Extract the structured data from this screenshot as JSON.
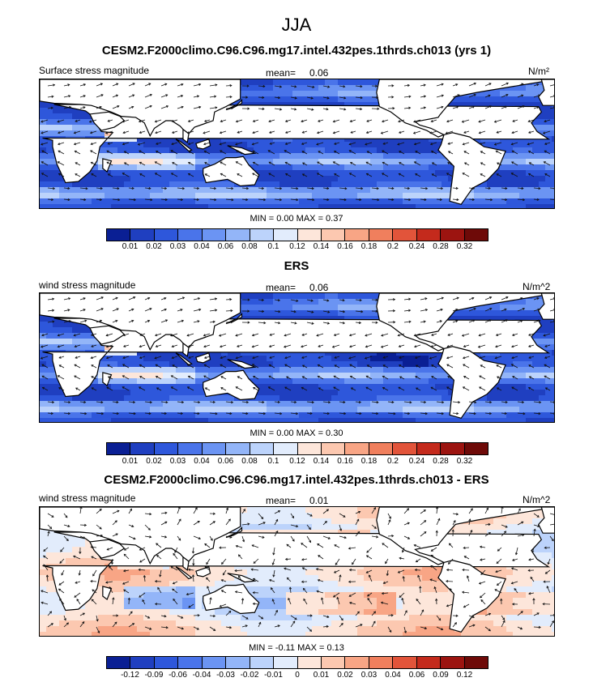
{
  "page": {
    "title": "JJA"
  },
  "panels": [
    {
      "title": "CESM2.F2000climo.C96.C96.mg17.intel.432pes.1thrds.ch013 (yrs 1)",
      "left_label": "Surface stress magnitude",
      "mean_label": "mean=",
      "mean_value": "0.06",
      "units": "N/m²",
      "minmax": "MIN =   0.00 MAX =   0.37",
      "colorbar_ticks": [
        "0.01",
        "0.02",
        "0.03",
        "0.04",
        "0.06",
        "0.08",
        "0.1",
        "0.12",
        "0.14",
        "0.16",
        "0.18",
        "0.2",
        "0.24",
        "0.28",
        "0.32"
      ],
      "kind": "model"
    },
    {
      "title": "ERS",
      "left_label": "wind stress magnitude",
      "mean_label": "mean=",
      "mean_value": "0.06",
      "units": "N/m^2",
      "minmax": "MIN =   0.00 MAX =   0.30",
      "colorbar_ticks": [
        "0.01",
        "0.02",
        "0.03",
        "0.04",
        "0.06",
        "0.08",
        "0.1",
        "0.12",
        "0.14",
        "0.16",
        "0.18",
        "0.2",
        "0.24",
        "0.28",
        "0.32"
      ],
      "kind": "obs"
    },
    {
      "title": "CESM2.F2000climo.C96.C96.mg17.intel.432pes.1thrds.ch013 - ERS",
      "left_label": "wind stress magnitude",
      "mean_label": "mean=",
      "mean_value": "0.01",
      "units": "N/m^2",
      "minmax": "MIN =  -0.11 MAX =   0.13",
      "colorbar_ticks": [
        "-0.12",
        "-0.09",
        "-0.06",
        "-0.04",
        "-0.03",
        "-0.02",
        "-0.01",
        "0",
        "0.01",
        "0.02",
        "0.03",
        "0.04",
        "0.06",
        "0.09",
        "0.12"
      ],
      "kind": "diff"
    }
  ],
  "colorbar_colors": [
    "#0a1f94",
    "#1f3fc0",
    "#2e57db",
    "#4a74ea",
    "#6b94f3",
    "#93b5f8",
    "#bcd3fb",
    "#e2ecfc",
    "#fde6da",
    "#fcc8b0",
    "#f8a585",
    "#f07f5d",
    "#e2543a",
    "#c42a1c",
    "#9c1410",
    "#6e0a08"
  ],
  "chart_data": [
    {
      "type": "heatmap",
      "title": "CESM2.F2000climo.C96.C96.mg17.intel.432pes.1thrds.ch013 (yrs 1)",
      "variable": "Surface stress magnitude",
      "units": "N/m²",
      "mean": 0.06,
      "min": 0.0,
      "max": 0.37,
      "levels": [
        0.01,
        0.02,
        0.03,
        0.04,
        0.06,
        0.08,
        0.1,
        0.12,
        0.14,
        0.16,
        0.18,
        0.2,
        0.24,
        0.28,
        0.32
      ]
    },
    {
      "type": "heatmap",
      "title": "ERS",
      "variable": "wind stress magnitude",
      "units": "N/m^2",
      "mean": 0.06,
      "min": 0.0,
      "max": 0.3,
      "levels": [
        0.01,
        0.02,
        0.03,
        0.04,
        0.06,
        0.08,
        0.1,
        0.12,
        0.14,
        0.16,
        0.18,
        0.2,
        0.24,
        0.28,
        0.32
      ]
    },
    {
      "type": "heatmap",
      "title": "CESM2.F2000climo.C96.C96.mg17.intel.432pes.1thrds.ch013 - ERS",
      "variable": "wind stress magnitude",
      "units": "N/m^2",
      "mean": 0.01,
      "min": -0.11,
      "max": 0.13,
      "levels": [
        -0.12,
        -0.09,
        -0.06,
        -0.04,
        -0.03,
        -0.02,
        -0.01,
        0,
        0.01,
        0.02,
        0.03,
        0.04,
        0.06,
        0.09,
        0.12
      ]
    }
  ]
}
